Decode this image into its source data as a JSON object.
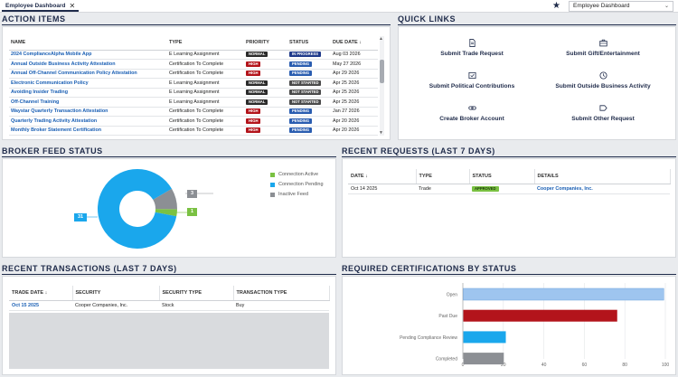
{
  "header": {
    "tab_label": "Employee Dashboard",
    "close_glyph": "✕",
    "star_glyph": "★",
    "dashboard_select": "Employee Dashboard",
    "chevron_glyph": "⌄"
  },
  "action_items": {
    "title": "ACTION ITEMS",
    "columns": [
      "NAME",
      "TYPE",
      "PRIORITY",
      "STATUS",
      "DUE DATE ↓"
    ],
    "rows": [
      {
        "name": "2024 ComplianceAlpha Mobile App",
        "type": "E Learning Assignment",
        "priority": "NORMAL",
        "status": "IN PROGRESS",
        "due": "Aug 03 2026"
      },
      {
        "name": "Annual Outside Business Activity Attestation",
        "type": "Certification To Complete",
        "priority": "HIGH",
        "status": "PENDING",
        "due": "May 27 2026"
      },
      {
        "name": "Annual Off-Channel Communication Policy Attestation",
        "type": "Certification To Complete",
        "priority": "HIGH",
        "status": "PENDING",
        "due": "Apr 29 2026"
      },
      {
        "name": "Electronic Communication Policy",
        "type": "E Learning Assignment",
        "priority": "NORMAL",
        "status": "NOT STARTED",
        "due": "Apr 25 2026"
      },
      {
        "name": "Avoiding Insider Trading",
        "type": "E Learning Assignment",
        "priority": "NORMAL",
        "status": "NOT STARTED",
        "due": "Apr 25 2026"
      },
      {
        "name": "Off-Channel Training",
        "type": "E Learning Assignment",
        "priority": "NORMAL",
        "status": "NOT STARTED",
        "due": "Apr 25 2026"
      },
      {
        "name": "Waystar Quarterly Transaction Attestation",
        "type": "Certification To Complete",
        "priority": "HIGH",
        "status": "PENDING",
        "due": "Jan 27 2026"
      },
      {
        "name": "Quarterly Trading Activity Attestation",
        "type": "Certification To Complete",
        "priority": "HIGH",
        "status": "PENDING",
        "due": "Apr 20 2026"
      },
      {
        "name": "Monthly Broker Statement Certification",
        "type": "Certification To Complete",
        "priority": "HIGH",
        "status": "PENDING",
        "due": "Apr 20 2026"
      }
    ]
  },
  "quick_links": {
    "title": "QUICK LINKS",
    "items": [
      {
        "label": "Submit Trade Request",
        "icon": "document-icon"
      },
      {
        "label": "Submit Gift/Entertainment",
        "icon": "briefcase-icon"
      },
      {
        "label": "Submit Political Contributions",
        "icon": "ballot-icon"
      },
      {
        "label": "Submit Outside Business Activity",
        "icon": "activity-icon"
      },
      {
        "label": "Create Broker Account",
        "icon": "link-icon"
      },
      {
        "label": "Submit Other Request",
        "icon": "tag-icon"
      }
    ]
  },
  "broker_feed": {
    "title": "BROKER FEED STATUS",
    "legend": [
      "Connection Active",
      "Connection Pending",
      "Inactive Feed"
    ],
    "colors": [
      "#7ac142",
      "#1aa7ec",
      "#8c8f94"
    ],
    "values": [
      1,
      31,
      3
    ],
    "labels": [
      "1",
      "31",
      "3"
    ]
  },
  "recent_requests": {
    "title": "RECENT REQUESTS (LAST 7 DAYS)",
    "columns": [
      "DATE ↓",
      "TYPE",
      "STATUS",
      "DETAILS"
    ],
    "rows": [
      {
        "date": "Oct 14 2025",
        "type": "Trade",
        "status": "APPROVED",
        "details": "Cooper Companies, Inc."
      }
    ]
  },
  "recent_transactions": {
    "title": "RECENT TRANSACTIONS (LAST 7 DAYS)",
    "columns": [
      "TRADE DATE ↓",
      "SECURITY",
      "SECURITY TYPE",
      "TRANSACTION TYPE"
    ],
    "rows": [
      {
        "date": "Oct 15 2025",
        "security": "Cooper Companies, Inc.",
        "security_type": "Stock",
        "transaction_type": "Buy"
      }
    ]
  },
  "required_certs": {
    "title": "REQUIRED CERTIFICATIONS BY STATUS"
  },
  "chart_data": {
    "type": "bar",
    "orientation": "horizontal",
    "title": "REQUIRED CERTIFICATIONS BY STATUS",
    "categories": [
      "Open",
      "Past Due",
      "Pending Compliance Review",
      "Completed"
    ],
    "values": [
      99,
      76,
      21,
      20
    ],
    "colors": [
      "#9ec5ef",
      "#b3141b",
      "#1aa7ec",
      "#8c8f94"
    ],
    "xlim": [
      0,
      100
    ],
    "xticks": [
      "0",
      "20",
      "40",
      "60",
      "80",
      "100"
    ]
  }
}
